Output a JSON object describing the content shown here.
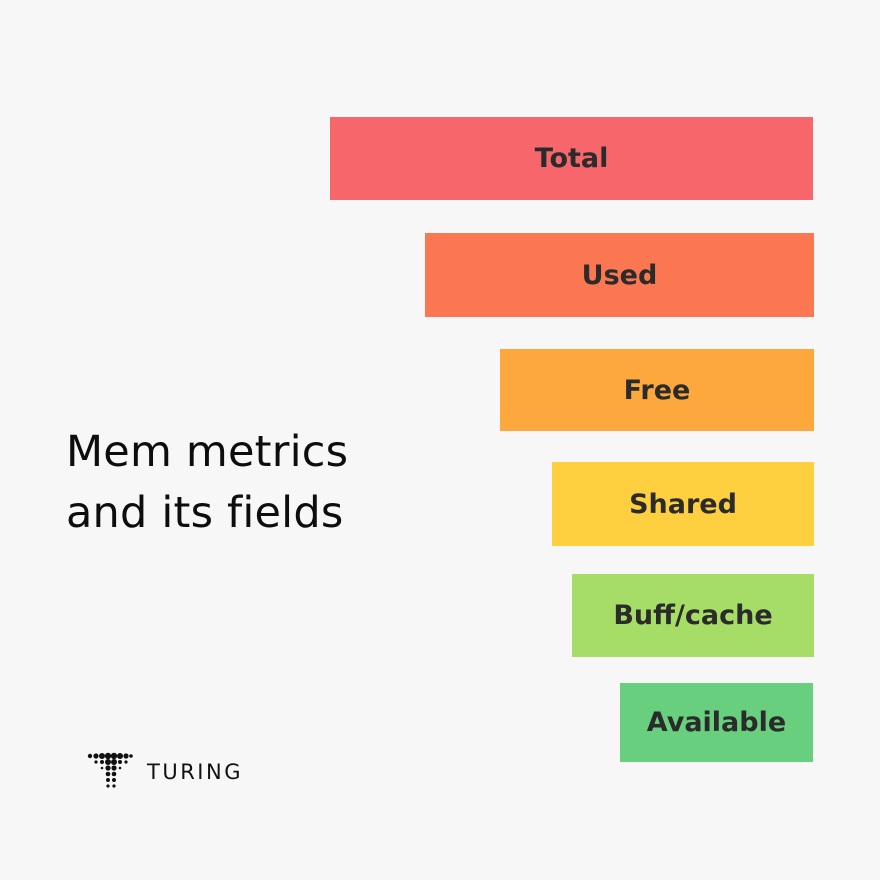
{
  "title": {
    "line1": "Mem metrics",
    "line2": "and its fields"
  },
  "fields": [
    {
      "label": "Total",
      "color": "#f6666a"
    },
    {
      "label": "Used",
      "color": "#fb7752"
    },
    {
      "label": "Free",
      "color": "#fda83c"
    },
    {
      "label": "Shared",
      "color": "#fecf3f"
    },
    {
      "label": "Buff/cache",
      "color": "#a5dd67"
    },
    {
      "label": "Available",
      "color": "#67cf7e"
    }
  ],
  "brand": {
    "name": "TURING",
    "logo_icon": "turing-dot-t-icon"
  }
}
